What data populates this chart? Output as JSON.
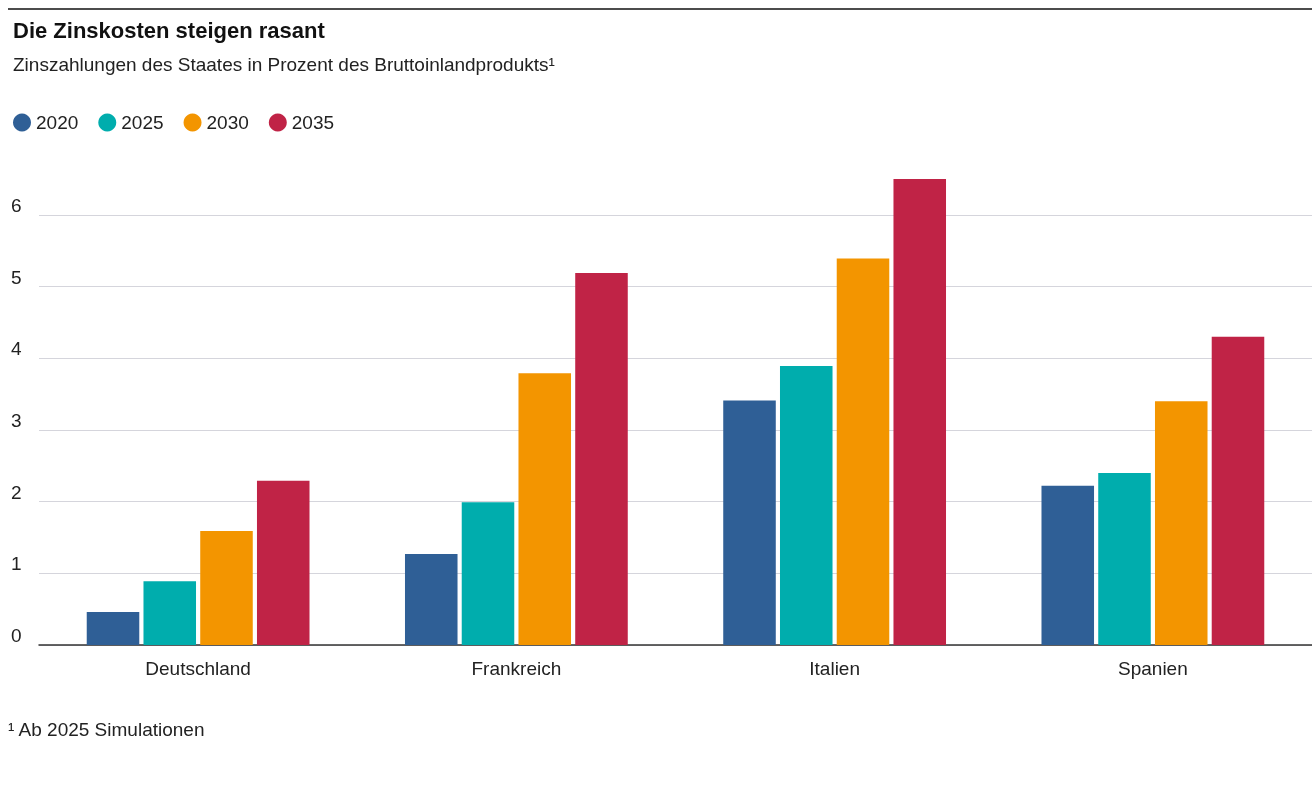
{
  "chart_data": {
    "type": "bar",
    "title": "Die Zinskosten steigen rasant",
    "subtitle": "Zinszahlungen des Staates in Prozent des Bruttoinlandprodukts¹",
    "categories": [
      "Deutschland",
      "Frankreich",
      "Italien",
      "Spanien"
    ],
    "series": [
      {
        "name": "2020",
        "color": "#2f5f96",
        "values": [
          0.46,
          1.27,
          3.41,
          2.22
        ]
      },
      {
        "name": "2025",
        "color": "#00adad",
        "values": [
          0.89,
          1.99,
          3.89,
          2.4
        ]
      },
      {
        "name": "2030",
        "color": "#f39500",
        "values": [
          1.59,
          3.79,
          5.39,
          3.4
        ]
      },
      {
        "name": "2035",
        "color": "#c02346",
        "values": [
          2.29,
          5.19,
          6.5,
          4.3
        ]
      }
    ],
    "ylim": [
      0,
      6.5
    ],
    "yticks": [
      0,
      1,
      2,
      3,
      4,
      5,
      6
    ],
    "grid": "y",
    "legend": "top left",
    "annotations": [
      "¹ Ab 2025 Simulationen"
    ]
  }
}
